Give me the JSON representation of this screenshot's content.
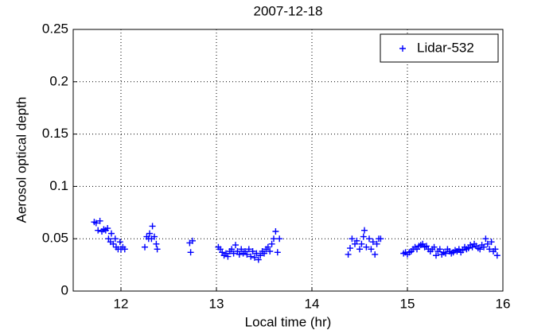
{
  "chart_data": {
    "type": "scatter",
    "title": "2007-12-18",
    "x_label": "Local time (hr)",
    "y_label": "Aerosol optical depth",
    "xlim": [
      11.5,
      16
    ],
    "ylim": [
      0,
      0.25
    ],
    "xticks": [
      12,
      13,
      14,
      15,
      16
    ],
    "yticks": [
      0,
      0.05,
      0.1,
      0.15,
      0.2,
      0.25
    ],
    "grid": true,
    "legend": "upper right",
    "series": [
      {
        "name": "Lidar-532",
        "color": "#0000ff",
        "x": [
          11.72,
          11.74,
          11.76,
          11.78,
          11.8,
          11.82,
          11.84,
          11.86,
          11.87,
          11.89,
          11.9,
          11.92,
          11.94,
          11.95,
          11.97,
          11.99,
          12.0,
          12.02,
          12.04,
          12.25,
          12.27,
          12.29,
          12.3,
          12.32,
          12.33,
          12.35,
          12.37,
          12.38,
          12.72,
          12.73,
          12.75,
          13.02,
          13.04,
          13.06,
          13.08,
          13.1,
          13.12,
          13.14,
          13.16,
          13.18,
          13.2,
          13.22,
          13.24,
          13.26,
          13.28,
          13.3,
          13.32,
          13.34,
          13.36,
          13.38,
          13.4,
          13.42,
          13.44,
          13.46,
          13.48,
          13.5,
          13.52,
          13.54,
          13.56,
          13.58,
          13.6,
          13.62,
          13.64,
          13.66,
          14.38,
          14.4,
          14.42,
          14.45,
          14.47,
          14.5,
          14.52,
          14.54,
          14.55,
          14.57,
          14.6,
          14.62,
          14.64,
          14.66,
          14.68,
          14.7,
          14.72,
          14.96,
          14.98,
          15.0,
          15.02,
          15.04,
          15.06,
          15.08,
          15.1,
          15.12,
          15.14,
          15.16,
          15.18,
          15.2,
          15.22,
          15.24,
          15.26,
          15.28,
          15.3,
          15.32,
          15.34,
          15.36,
          15.38,
          15.4,
          15.42,
          15.44,
          15.46,
          15.48,
          15.5,
          15.52,
          15.54,
          15.56,
          15.58,
          15.6,
          15.62,
          15.64,
          15.66,
          15.68,
          15.7,
          15.72,
          15.74,
          15.76,
          15.78,
          15.8,
          15.82,
          15.84,
          15.86,
          15.88,
          15.9,
          15.92,
          15.94
        ],
        "values": [
          0.066,
          0.065,
          0.058,
          0.067,
          0.057,
          0.059,
          0.058,
          0.06,
          0.05,
          0.047,
          0.055,
          0.045,
          0.05,
          0.042,
          0.04,
          0.047,
          0.04,
          0.042,
          0.04,
          0.042,
          0.052,
          0.05,
          0.055,
          0.05,
          0.062,
          0.052,
          0.045,
          0.04,
          0.046,
          0.037,
          0.048,
          0.042,
          0.04,
          0.037,
          0.034,
          0.036,
          0.033,
          0.038,
          0.04,
          0.036,
          0.044,
          0.038,
          0.035,
          0.04,
          0.036,
          0.038,
          0.035,
          0.04,
          0.033,
          0.038,
          0.032,
          0.036,
          0.03,
          0.034,
          0.038,
          0.036,
          0.04,
          0.042,
          0.038,
          0.045,
          0.05,
          0.057,
          0.037,
          0.05,
          0.035,
          0.041,
          0.05,
          0.045,
          0.048,
          0.04,
          0.045,
          0.052,
          0.058,
          0.042,
          0.05,
          0.04,
          0.047,
          0.035,
          0.045,
          0.05,
          0.05,
          0.036,
          0.037,
          0.035,
          0.037,
          0.038,
          0.04,
          0.042,
          0.04,
          0.043,
          0.044,
          0.045,
          0.042,
          0.043,
          0.04,
          0.038,
          0.04,
          0.042,
          0.034,
          0.038,
          0.04,
          0.035,
          0.037,
          0.036,
          0.04,
          0.038,
          0.036,
          0.037,
          0.039,
          0.038,
          0.04,
          0.037,
          0.039,
          0.042,
          0.04,
          0.041,
          0.044,
          0.042,
          0.045,
          0.043,
          0.041,
          0.04,
          0.044,
          0.042,
          0.05,
          0.045,
          0.04,
          0.047,
          0.038,
          0.04,
          0.034
        ]
      }
    ]
  }
}
